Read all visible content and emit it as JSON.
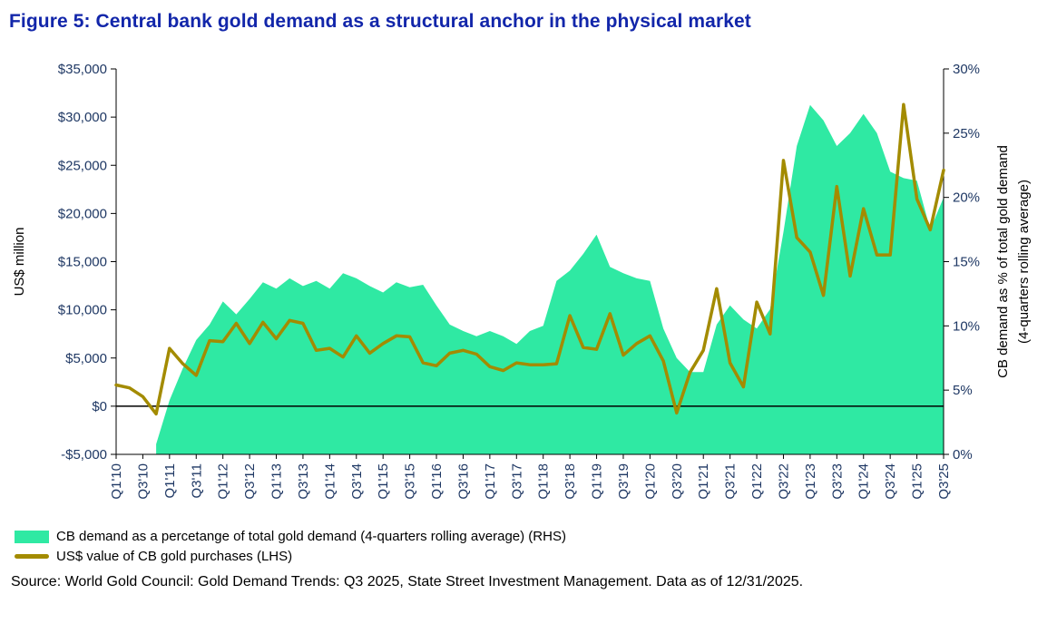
{
  "title": "Figure 5: Central bank gold demand as a structural anchor in the physical market",
  "colors": {
    "title": "#1226aa",
    "area": "#2fe9a3",
    "line": "#a38b00",
    "axis_text": "#1f3864",
    "axis_line": "#000000"
  },
  "legend": [
    {
      "label": "CB demand as a percetange of total gold demand (4-quarters rolling average) (RHS)",
      "swatch": "area-swatch"
    },
    {
      "label": "US$ value of CB gold purchases (LHS)",
      "swatch": "line-swatch"
    }
  ],
  "source": "Source: World Gold Council: Gold Demand Trends: Q3 2025, State Street Investment Management. Data as of 12/31/2025.",
  "chart_data": {
    "type": "combo",
    "subtype": [
      "area",
      "line"
    ],
    "x_range": "Q1'10 to Q3'25 (quarterly, 63 points; every other quarter labeled)",
    "x_tick_labels": [
      "Q1'10",
      "Q3'10",
      "Q1'11",
      "Q3'11",
      "Q1'12",
      "Q3'12",
      "Q1'13",
      "Q3'13",
      "Q1'14",
      "Q3'14",
      "Q1'15",
      "Q3'15",
      "Q1'16",
      "Q3'16",
      "Q1'17",
      "Q3'17",
      "Q1'18",
      "Q3'18",
      "Q1'19",
      "Q3'19",
      "Q1'20",
      "Q3'20",
      "Q1'21",
      "Q3'21",
      "Q1'22",
      "Q3'22",
      "Q1'23",
      "Q3'23",
      "Q1'24",
      "Q3'24",
      "Q1'25",
      "Q3'25"
    ],
    "left_axis": {
      "title": "US$ million",
      "min": -5000,
      "max": 35000,
      "step": 5000,
      "tick_labels": [
        "$35,000",
        "$30,000",
        "$25,000",
        "$20,000",
        "$15,000",
        "$10,000",
        "$5,000",
        "$0",
        "-$5,000"
      ]
    },
    "right_axis": {
      "title": "CB demand as % of total gold demand (4-quarters rolling average)",
      "title_lines": [
        "CB demand as % of total gold demand",
        "(4-quarters rolling average)"
      ],
      "min": 0,
      "max": 30,
      "step": 5,
      "tick_labels": [
        "30%",
        "25%",
        "20%",
        "15%",
        "10%",
        "5%",
        "0%"
      ]
    },
    "grid": false,
    "legend_position": "bottom-left",
    "series": [
      {
        "name": "CB demand as a percetange of total gold demand (4-quarters rolling average) (RHS)",
        "type": "area",
        "axis": "right",
        "unit": "%",
        "values": [
          null,
          null,
          null,
          0.8,
          4.2,
          6.7,
          8.9,
          10.1,
          11.9,
          10.9,
          12.1,
          13.4,
          12.9,
          13.7,
          13.1,
          13.5,
          12.9,
          14.1,
          13.7,
          13.1,
          12.6,
          13.4,
          13.0,
          13.2,
          11.6,
          10.1,
          9.6,
          9.2,
          9.6,
          9.2,
          8.6,
          9.6,
          10.0,
          13.5,
          14.3,
          15.6,
          17.1,
          14.6,
          14.1,
          13.7,
          13.5,
          9.8,
          7.5,
          6.4,
          6.4,
          10.1,
          11.6,
          10.5,
          9.8,
          11.3,
          17.3,
          24.0,
          27.2,
          26.0,
          24.0,
          25.0,
          26.5,
          25.0,
          22.0,
          21.5,
          21.3,
          17.5,
          20.0
        ]
      },
      {
        "name": "US$ value of CB gold purchases (LHS)",
        "type": "line",
        "axis": "left",
        "unit": "US$ million",
        "values": [
          2200,
          1900,
          1000,
          -800,
          6000,
          4400,
          3200,
          6800,
          6700,
          8600,
          6500,
          8700,
          7000,
          8900,
          8600,
          5800,
          6000,
          5100,
          7300,
          5500,
          6500,
          7300,
          7200,
          4500,
          4200,
          5500,
          5800,
          5400,
          4100,
          3700,
          4500,
          4300,
          4300,
          4400,
          9400,
          6100,
          5900,
          9600,
          5300,
          6500,
          7300,
          4700,
          -700,
          3500,
          5800,
          12200,
          4500,
          2000,
          10800,
          7500,
          25500,
          17500,
          16000,
          11500,
          22800,
          13500,
          20500,
          15700,
          15700,
          31300,
          21500,
          18300,
          24500
        ]
      }
    ]
  }
}
